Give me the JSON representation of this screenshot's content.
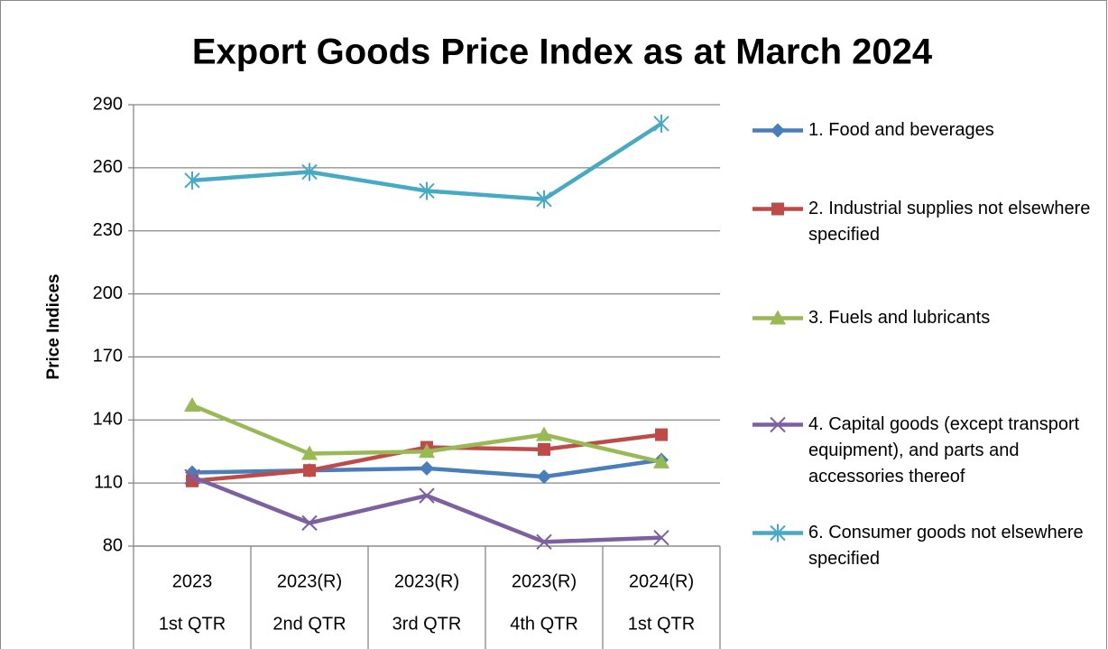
{
  "chart_data": {
    "type": "line",
    "title": "Export Goods Price Index as at March 2024",
    "y_label": "Price Indices",
    "categories": [
      [
        "2023",
        "1st QTR"
      ],
      [
        "2023(R)",
        "2nd QTR"
      ],
      [
        "2023(R)",
        "3rd QTR"
      ],
      [
        "2023(R)",
        "4th QTR"
      ],
      [
        "2024(R)",
        "1st QTR"
      ]
    ],
    "series": [
      {
        "name": "1. Food and beverages",
        "color": "#4a7ebb",
        "marker": "diamond",
        "values": [
          115,
          116,
          117,
          113,
          121
        ]
      },
      {
        "name": "2. Industrial supplies not elsewhere specified",
        "color": "#be4b48",
        "marker": "square",
        "values": [
          111,
          116,
          127,
          126,
          133
        ]
      },
      {
        "name": "3. Fuels and lubricants",
        "color": "#98b954",
        "marker": "triangle",
        "values": [
          147,
          124,
          125,
          133,
          120
        ]
      },
      {
        "name": "4. Capital goods (except transport equipment), and parts and accessories thereof",
        "color": "#7d60a0",
        "marker": "x",
        "values": [
          113,
          91,
          104,
          82,
          84
        ]
      },
      {
        "name": "6. Consumer goods not elsewhere specified",
        "color": "#46aac5",
        "marker": "asterisk",
        "values": [
          254,
          258,
          249,
          245,
          281
        ]
      }
    ],
    "ylim": [
      80,
      290
    ],
    "yticks": [
      80,
      110,
      140,
      170,
      200,
      230,
      260,
      290
    ],
    "grid": true,
    "legend": "right"
  }
}
